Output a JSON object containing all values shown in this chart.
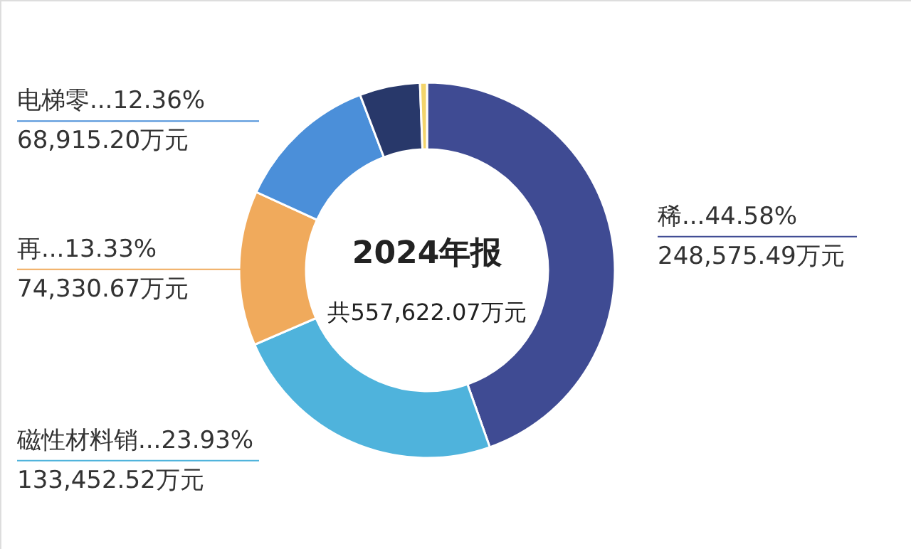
{
  "chart_data": {
    "type": "donut",
    "title": "2024年报",
    "annotations": [
      "共557,622.07万元"
    ],
    "categories": [
      "稀...",
      "磁性材料销...",
      "再...",
      "电梯零...",
      null,
      null
    ],
    "values": [
      248575.49,
      133452.52,
      74330.67,
      68915.2,
      29000,
      3348.19
    ],
    "value_labels": [
      "44.58%\n248,575.49万元",
      "23.93%\n133,452.52万元",
      "13.33%\n74,330.67万元",
      "12.36%\n68,915.20万元",
      null,
      null
    ],
    "colors": [
      "#3f4b93",
      "#4fb3dc",
      "#f0aa5c",
      "#4b8fd9",
      "#28386a",
      "#f3d46a"
    ]
  }
}
